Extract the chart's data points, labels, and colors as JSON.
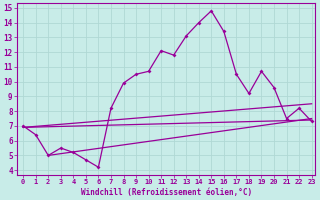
{
  "xlabel": "Windchill (Refroidissement éolien,°C)",
  "background_color": "#c8ece8",
  "grid_color": "#b0d8d4",
  "line_color": "#990099",
  "xlim": [
    -0.5,
    23.3
  ],
  "ylim": [
    3.7,
    15.3
  ],
  "xticks": [
    0,
    1,
    2,
    3,
    4,
    5,
    6,
    7,
    8,
    9,
    10,
    11,
    12,
    13,
    14,
    15,
    16,
    17,
    18,
    19,
    20,
    21,
    22,
    23
  ],
  "yticks": [
    4,
    5,
    6,
    7,
    8,
    9,
    10,
    11,
    12,
    13,
    14,
    15
  ],
  "line1_x": [
    0,
    1,
    2,
    3,
    4,
    5,
    6,
    7,
    8,
    9,
    10,
    11,
    12,
    13,
    14,
    15,
    16,
    17,
    18,
    19,
    20,
    21,
    22,
    23
  ],
  "line1_y": [
    7.0,
    6.4,
    5.0,
    5.5,
    5.2,
    4.7,
    4.2,
    8.2,
    9.9,
    10.5,
    10.7,
    12.1,
    11.8,
    13.1,
    14.0,
    14.8,
    13.4,
    10.5,
    9.2,
    10.7,
    9.6,
    7.5,
    8.2,
    7.3
  ],
  "line2_x": [
    0,
    23
  ],
  "line2_y": [
    6.9,
    7.4
  ],
  "line3_x": [
    0,
    23
  ],
  "line3_y": [
    6.9,
    8.5
  ],
  "line4_x": [
    2,
    23
  ],
  "line4_y": [
    5.0,
    7.5
  ]
}
